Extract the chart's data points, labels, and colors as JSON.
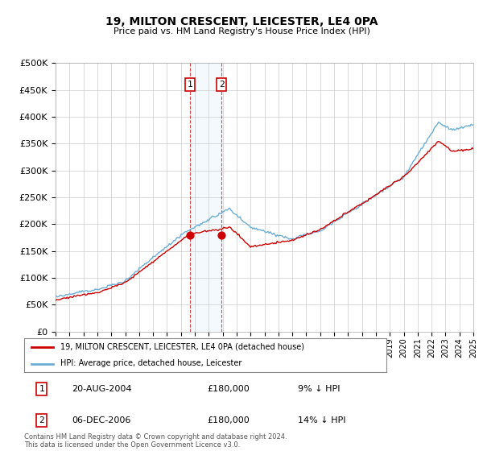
{
  "title": "19, MILTON CRESCENT, LEICESTER, LE4 0PA",
  "subtitle": "Price paid vs. HM Land Registry's House Price Index (HPI)",
  "ylim": [
    0,
    500000
  ],
  "yticks": [
    0,
    50000,
    100000,
    150000,
    200000,
    250000,
    300000,
    350000,
    400000,
    450000,
    500000
  ],
  "ytick_labels": [
    "£0",
    "£50K",
    "£100K",
    "£150K",
    "£200K",
    "£250K",
    "£300K",
    "£350K",
    "£400K",
    "£450K",
    "£500K"
  ],
  "hpi_color": "#6baed6",
  "price_color": "#cc0000",
  "transaction1": {
    "date_label": "20-AUG-2004",
    "price": 180000,
    "hpi_pct": "9% ↓ HPI",
    "year": 2004.64
  },
  "transaction2": {
    "date_label": "06-DEC-2006",
    "price": 180000,
    "hpi_pct": "14% ↓ HPI",
    "year": 2006.92
  },
  "legend_line1": "19, MILTON CRESCENT, LEICESTER, LE4 0PA (detached house)",
  "legend_line2": "HPI: Average price, detached house, Leicester",
  "footnote": "Contains HM Land Registry data © Crown copyright and database right 2024.\nThis data is licensed under the Open Government Licence v3.0.",
  "background_color": "#ffffff",
  "grid_color": "#cccccc",
  "xlim_start": 1995,
  "xlim_end": 2025
}
